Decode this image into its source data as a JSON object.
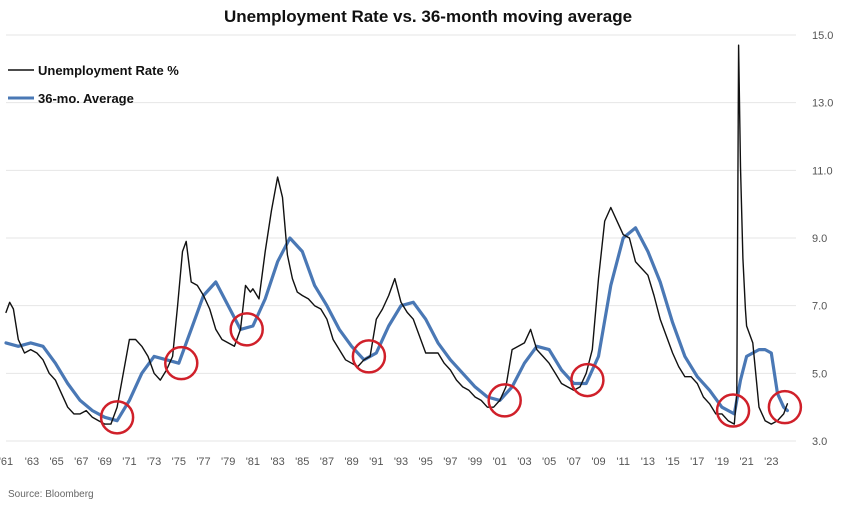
{
  "chart_data": {
    "type": "line",
    "title": "Unemployment Rate vs. 36-month moving average",
    "source": "Source: Bloomberg",
    "xlabel": "",
    "ylabel": "",
    "xlim": [
      1961,
      2025
    ],
    "ylim": [
      3.0,
      15.0
    ],
    "y_ticks": [
      "3.0",
      "5.0",
      "7.0",
      "9.0",
      "11.0",
      "13.0",
      "15.0"
    ],
    "x_ticks": [
      {
        "x": 1961.0,
        "label": "'61"
      },
      {
        "x": 1963.1,
        "label": "'63"
      },
      {
        "x": 1965.1,
        "label": "'65"
      },
      {
        "x": 1967.1,
        "label": "'67"
      },
      {
        "x": 1969.0,
        "label": "'69"
      },
      {
        "x": 1971.0,
        "label": "'71"
      },
      {
        "x": 1973.0,
        "label": "'73"
      },
      {
        "x": 1975.0,
        "label": "'75"
      },
      {
        "x": 1977.0,
        "label": "'77"
      },
      {
        "x": 1979.0,
        "label": "'79"
      },
      {
        "x": 1981.0,
        "label": "'81"
      },
      {
        "x": 1983.0,
        "label": "'83"
      },
      {
        "x": 1985.0,
        "label": "'85"
      },
      {
        "x": 1987.0,
        "label": "'87"
      },
      {
        "x": 1989.0,
        "label": "'89"
      },
      {
        "x": 1991.0,
        "label": "'91"
      },
      {
        "x": 1993.0,
        "label": "'93"
      },
      {
        "x": 1995.0,
        "label": "'95"
      },
      {
        "x": 1997.0,
        "label": "'97"
      },
      {
        "x": 1999.0,
        "label": "'99"
      },
      {
        "x": 2001.0,
        "label": "'01"
      },
      {
        "x": 2003.0,
        "label": "'03"
      },
      {
        "x": 2005.0,
        "label": "'05"
      },
      {
        "x": 2007.0,
        "label": "'07"
      },
      {
        "x": 2009.0,
        "label": "'09"
      },
      {
        "x": 2011.0,
        "label": "'11"
      },
      {
        "x": 2013.0,
        "label": "'13"
      },
      {
        "x": 2015.0,
        "label": "'15"
      },
      {
        "x": 2017.0,
        "label": "'17"
      },
      {
        "x": 2019.0,
        "label": "'19"
      },
      {
        "x": 2021.0,
        "label": "'21"
      },
      {
        "x": 2023.0,
        "label": "'23"
      }
    ],
    "grid": true,
    "legend_position": "top-left",
    "series": [
      {
        "name": "Unemployment Rate %",
        "color": "#111111",
        "points": [
          [
            1961.0,
            6.8
          ],
          [
            1961.3,
            7.1
          ],
          [
            1961.6,
            6.9
          ],
          [
            1962.0,
            6.0
          ],
          [
            1962.5,
            5.6
          ],
          [
            1963.0,
            5.7
          ],
          [
            1963.5,
            5.6
          ],
          [
            1964.0,
            5.4
          ],
          [
            1964.5,
            5.0
          ],
          [
            1965.0,
            4.8
          ],
          [
            1965.5,
            4.4
          ],
          [
            1966.0,
            4.0
          ],
          [
            1966.5,
            3.8
          ],
          [
            1967.0,
            3.8
          ],
          [
            1967.5,
            3.9
          ],
          [
            1968.0,
            3.7
          ],
          [
            1968.5,
            3.6
          ],
          [
            1969.0,
            3.5
          ],
          [
            1969.5,
            3.5
          ],
          [
            1970.0,
            4.0
          ],
          [
            1970.5,
            5.0
          ],
          [
            1971.0,
            6.0
          ],
          [
            1971.5,
            6.0
          ],
          [
            1972.0,
            5.8
          ],
          [
            1972.5,
            5.5
          ],
          [
            1973.0,
            5.0
          ],
          [
            1973.5,
            4.8
          ],
          [
            1974.0,
            5.1
          ],
          [
            1974.5,
            5.5
          ],
          [
            1974.9,
            7.0
          ],
          [
            1975.3,
            8.6
          ],
          [
            1975.6,
            8.9
          ],
          [
            1976.0,
            7.7
          ],
          [
            1976.5,
            7.6
          ],
          [
            1977.0,
            7.3
          ],
          [
            1977.5,
            6.9
          ],
          [
            1978.0,
            6.3
          ],
          [
            1978.5,
            6.0
          ],
          [
            1979.0,
            5.9
          ],
          [
            1979.5,
            5.8
          ],
          [
            1980.0,
            6.3
          ],
          [
            1980.4,
            7.6
          ],
          [
            1980.8,
            7.4
          ],
          [
            1981.0,
            7.5
          ],
          [
            1981.5,
            7.2
          ],
          [
            1982.0,
            8.6
          ],
          [
            1982.5,
            9.8
          ],
          [
            1983.0,
            10.8
          ],
          [
            1983.4,
            10.2
          ],
          [
            1983.8,
            8.5
          ],
          [
            1984.2,
            7.8
          ],
          [
            1984.6,
            7.4
          ],
          [
            1985.0,
            7.3
          ],
          [
            1985.5,
            7.2
          ],
          [
            1986.0,
            7.0
          ],
          [
            1986.5,
            6.9
          ],
          [
            1987.0,
            6.6
          ],
          [
            1987.5,
            6.0
          ],
          [
            1988.0,
            5.7
          ],
          [
            1988.5,
            5.4
          ],
          [
            1989.0,
            5.3
          ],
          [
            1989.5,
            5.2
          ],
          [
            1990.0,
            5.4
          ],
          [
            1990.5,
            5.5
          ],
          [
            1991.0,
            6.6
          ],
          [
            1991.5,
            6.9
          ],
          [
            1992.0,
            7.3
          ],
          [
            1992.5,
            7.8
          ],
          [
            1993.0,
            7.1
          ],
          [
            1993.5,
            6.8
          ],
          [
            1994.0,
            6.6
          ],
          [
            1994.5,
            6.1
          ],
          [
            1995.0,
            5.6
          ],
          [
            1995.5,
            5.6
          ],
          [
            1996.0,
            5.6
          ],
          [
            1996.5,
            5.3
          ],
          [
            1997.0,
            5.1
          ],
          [
            1997.5,
            4.8
          ],
          [
            1998.0,
            4.6
          ],
          [
            1998.5,
            4.5
          ],
          [
            1999.0,
            4.3
          ],
          [
            1999.5,
            4.2
          ],
          [
            2000.0,
            4.0
          ],
          [
            2000.5,
            4.0
          ],
          [
            2001.0,
            4.2
          ],
          [
            2001.5,
            4.6
          ],
          [
            2002.0,
            5.7
          ],
          [
            2002.5,
            5.8
          ],
          [
            2003.0,
            5.9
          ],
          [
            2003.5,
            6.3
          ],
          [
            2004.0,
            5.7
          ],
          [
            2004.5,
            5.5
          ],
          [
            2005.0,
            5.3
          ],
          [
            2005.5,
            5.0
          ],
          [
            2006.0,
            4.7
          ],
          [
            2006.5,
            4.6
          ],
          [
            2007.0,
            4.5
          ],
          [
            2007.5,
            4.6
          ],
          [
            2008.0,
            5.0
          ],
          [
            2008.5,
            5.7
          ],
          [
            2009.0,
            7.8
          ],
          [
            2009.5,
            9.5
          ],
          [
            2010.0,
            9.9
          ],
          [
            2010.5,
            9.5
          ],
          [
            2011.0,
            9.1
          ],
          [
            2011.5,
            9.0
          ],
          [
            2012.0,
            8.3
          ],
          [
            2012.5,
            8.1
          ],
          [
            2013.0,
            7.9
          ],
          [
            2013.5,
            7.3
          ],
          [
            2014.0,
            6.6
          ],
          [
            2014.5,
            6.1
          ],
          [
            2015.0,
            5.6
          ],
          [
            2015.5,
            5.2
          ],
          [
            2016.0,
            4.9
          ],
          [
            2016.5,
            4.9
          ],
          [
            2017.0,
            4.7
          ],
          [
            2017.5,
            4.3
          ],
          [
            2018.0,
            4.1
          ],
          [
            2018.5,
            3.8
          ],
          [
            2019.0,
            3.8
          ],
          [
            2019.5,
            3.6
          ],
          [
            2020.0,
            3.5
          ],
          [
            2020.2,
            4.4
          ],
          [
            2020.35,
            14.7
          ],
          [
            2020.5,
            11.1
          ],
          [
            2020.7,
            8.4
          ],
          [
            2020.9,
            6.9
          ],
          [
            2021.0,
            6.4
          ],
          [
            2021.5,
            5.9
          ],
          [
            2022.0,
            4.0
          ],
          [
            2022.5,
            3.6
          ],
          [
            2023.0,
            3.5
          ],
          [
            2023.5,
            3.6
          ],
          [
            2024.0,
            3.8
          ],
          [
            2024.3,
            4.1
          ]
        ]
      },
      {
        "name": "36-mo. Average",
        "color": "#4a78b5",
        "points": [
          [
            1961.0,
            5.9
          ],
          [
            1962.0,
            5.8
          ],
          [
            1963.0,
            5.9
          ],
          [
            1964.0,
            5.8
          ],
          [
            1965.0,
            5.3
          ],
          [
            1966.0,
            4.7
          ],
          [
            1967.0,
            4.2
          ],
          [
            1968.0,
            3.9
          ],
          [
            1969.0,
            3.7
          ],
          [
            1970.0,
            3.6
          ],
          [
            1971.0,
            4.2
          ],
          [
            1972.0,
            5.0
          ],
          [
            1973.0,
            5.5
          ],
          [
            1974.0,
            5.4
          ],
          [
            1975.0,
            5.3
          ],
          [
            1976.0,
            6.3
          ],
          [
            1977.0,
            7.3
          ],
          [
            1978.0,
            7.7
          ],
          [
            1979.0,
            7.0
          ],
          [
            1980.0,
            6.3
          ],
          [
            1981.0,
            6.4
          ],
          [
            1982.0,
            7.2
          ],
          [
            1983.0,
            8.3
          ],
          [
            1984.0,
            9.0
          ],
          [
            1985.0,
            8.6
          ],
          [
            1986.0,
            7.6
          ],
          [
            1987.0,
            7.0
          ],
          [
            1988.0,
            6.3
          ],
          [
            1989.0,
            5.8
          ],
          [
            1990.0,
            5.4
          ],
          [
            1991.0,
            5.6
          ],
          [
            1992.0,
            6.4
          ],
          [
            1993.0,
            7.0
          ],
          [
            1994.0,
            7.1
          ],
          [
            1995.0,
            6.6
          ],
          [
            1996.0,
            5.9
          ],
          [
            1997.0,
            5.4
          ],
          [
            1998.0,
            5.0
          ],
          [
            1999.0,
            4.6
          ],
          [
            2000.0,
            4.3
          ],
          [
            2001.0,
            4.2
          ],
          [
            2002.0,
            4.6
          ],
          [
            2003.0,
            5.3
          ],
          [
            2004.0,
            5.8
          ],
          [
            2005.0,
            5.7
          ],
          [
            2006.0,
            5.1
          ],
          [
            2007.0,
            4.7
          ],
          [
            2008.0,
            4.7
          ],
          [
            2009.0,
            5.5
          ],
          [
            2010.0,
            7.6
          ],
          [
            2011.0,
            9.0
          ],
          [
            2012.0,
            9.3
          ],
          [
            2013.0,
            8.6
          ],
          [
            2014.0,
            7.7
          ],
          [
            2015.0,
            6.5
          ],
          [
            2016.0,
            5.5
          ],
          [
            2017.0,
            4.9
          ],
          [
            2018.0,
            4.5
          ],
          [
            2019.0,
            4.0
          ],
          [
            2020.0,
            3.8
          ],
          [
            2020.5,
            4.8
          ],
          [
            2021.0,
            5.5
          ],
          [
            2021.5,
            5.6
          ],
          [
            2022.0,
            5.7
          ],
          [
            2022.5,
            5.7
          ],
          [
            2023.0,
            5.6
          ],
          [
            2023.5,
            4.4
          ],
          [
            2024.0,
            4.0
          ],
          [
            2024.3,
            3.9
          ]
        ]
      }
    ],
    "annotations": [
      {
        "type": "circle",
        "x": 1970.0,
        "y": 3.7,
        "color": "#d0202a"
      },
      {
        "type": "circle",
        "x": 1975.2,
        "y": 5.3,
        "color": "#d0202a"
      },
      {
        "type": "circle",
        "x": 1980.5,
        "y": 6.3,
        "color": "#d0202a"
      },
      {
        "type": "circle",
        "x": 1990.4,
        "y": 5.5,
        "color": "#d0202a"
      },
      {
        "type": "circle",
        "x": 2001.4,
        "y": 4.2,
        "color": "#d0202a"
      },
      {
        "type": "circle",
        "x": 2008.1,
        "y": 4.8,
        "color": "#d0202a"
      },
      {
        "type": "circle",
        "x": 2019.9,
        "y": 3.9,
        "color": "#d0202a"
      },
      {
        "type": "circle",
        "x": 2024.1,
        "y": 4.0,
        "color": "#d0202a"
      }
    ]
  }
}
